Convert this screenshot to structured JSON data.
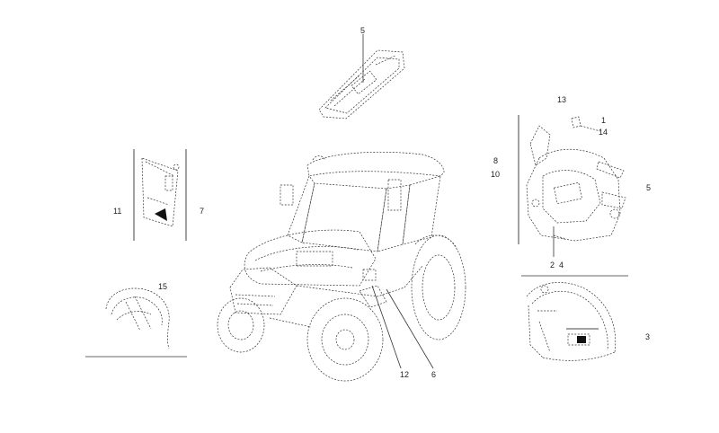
{
  "callouts": {
    "c5_top": "5",
    "c13": "13",
    "c1": "1",
    "c14": "14",
    "c8": "8",
    "c10": "10",
    "c5_right": "5",
    "c2": "2",
    "c4": "4",
    "c11": "11",
    "c7": "7",
    "c15": "15",
    "c3": "3",
    "c12": "12",
    "c6": "6"
  }
}
